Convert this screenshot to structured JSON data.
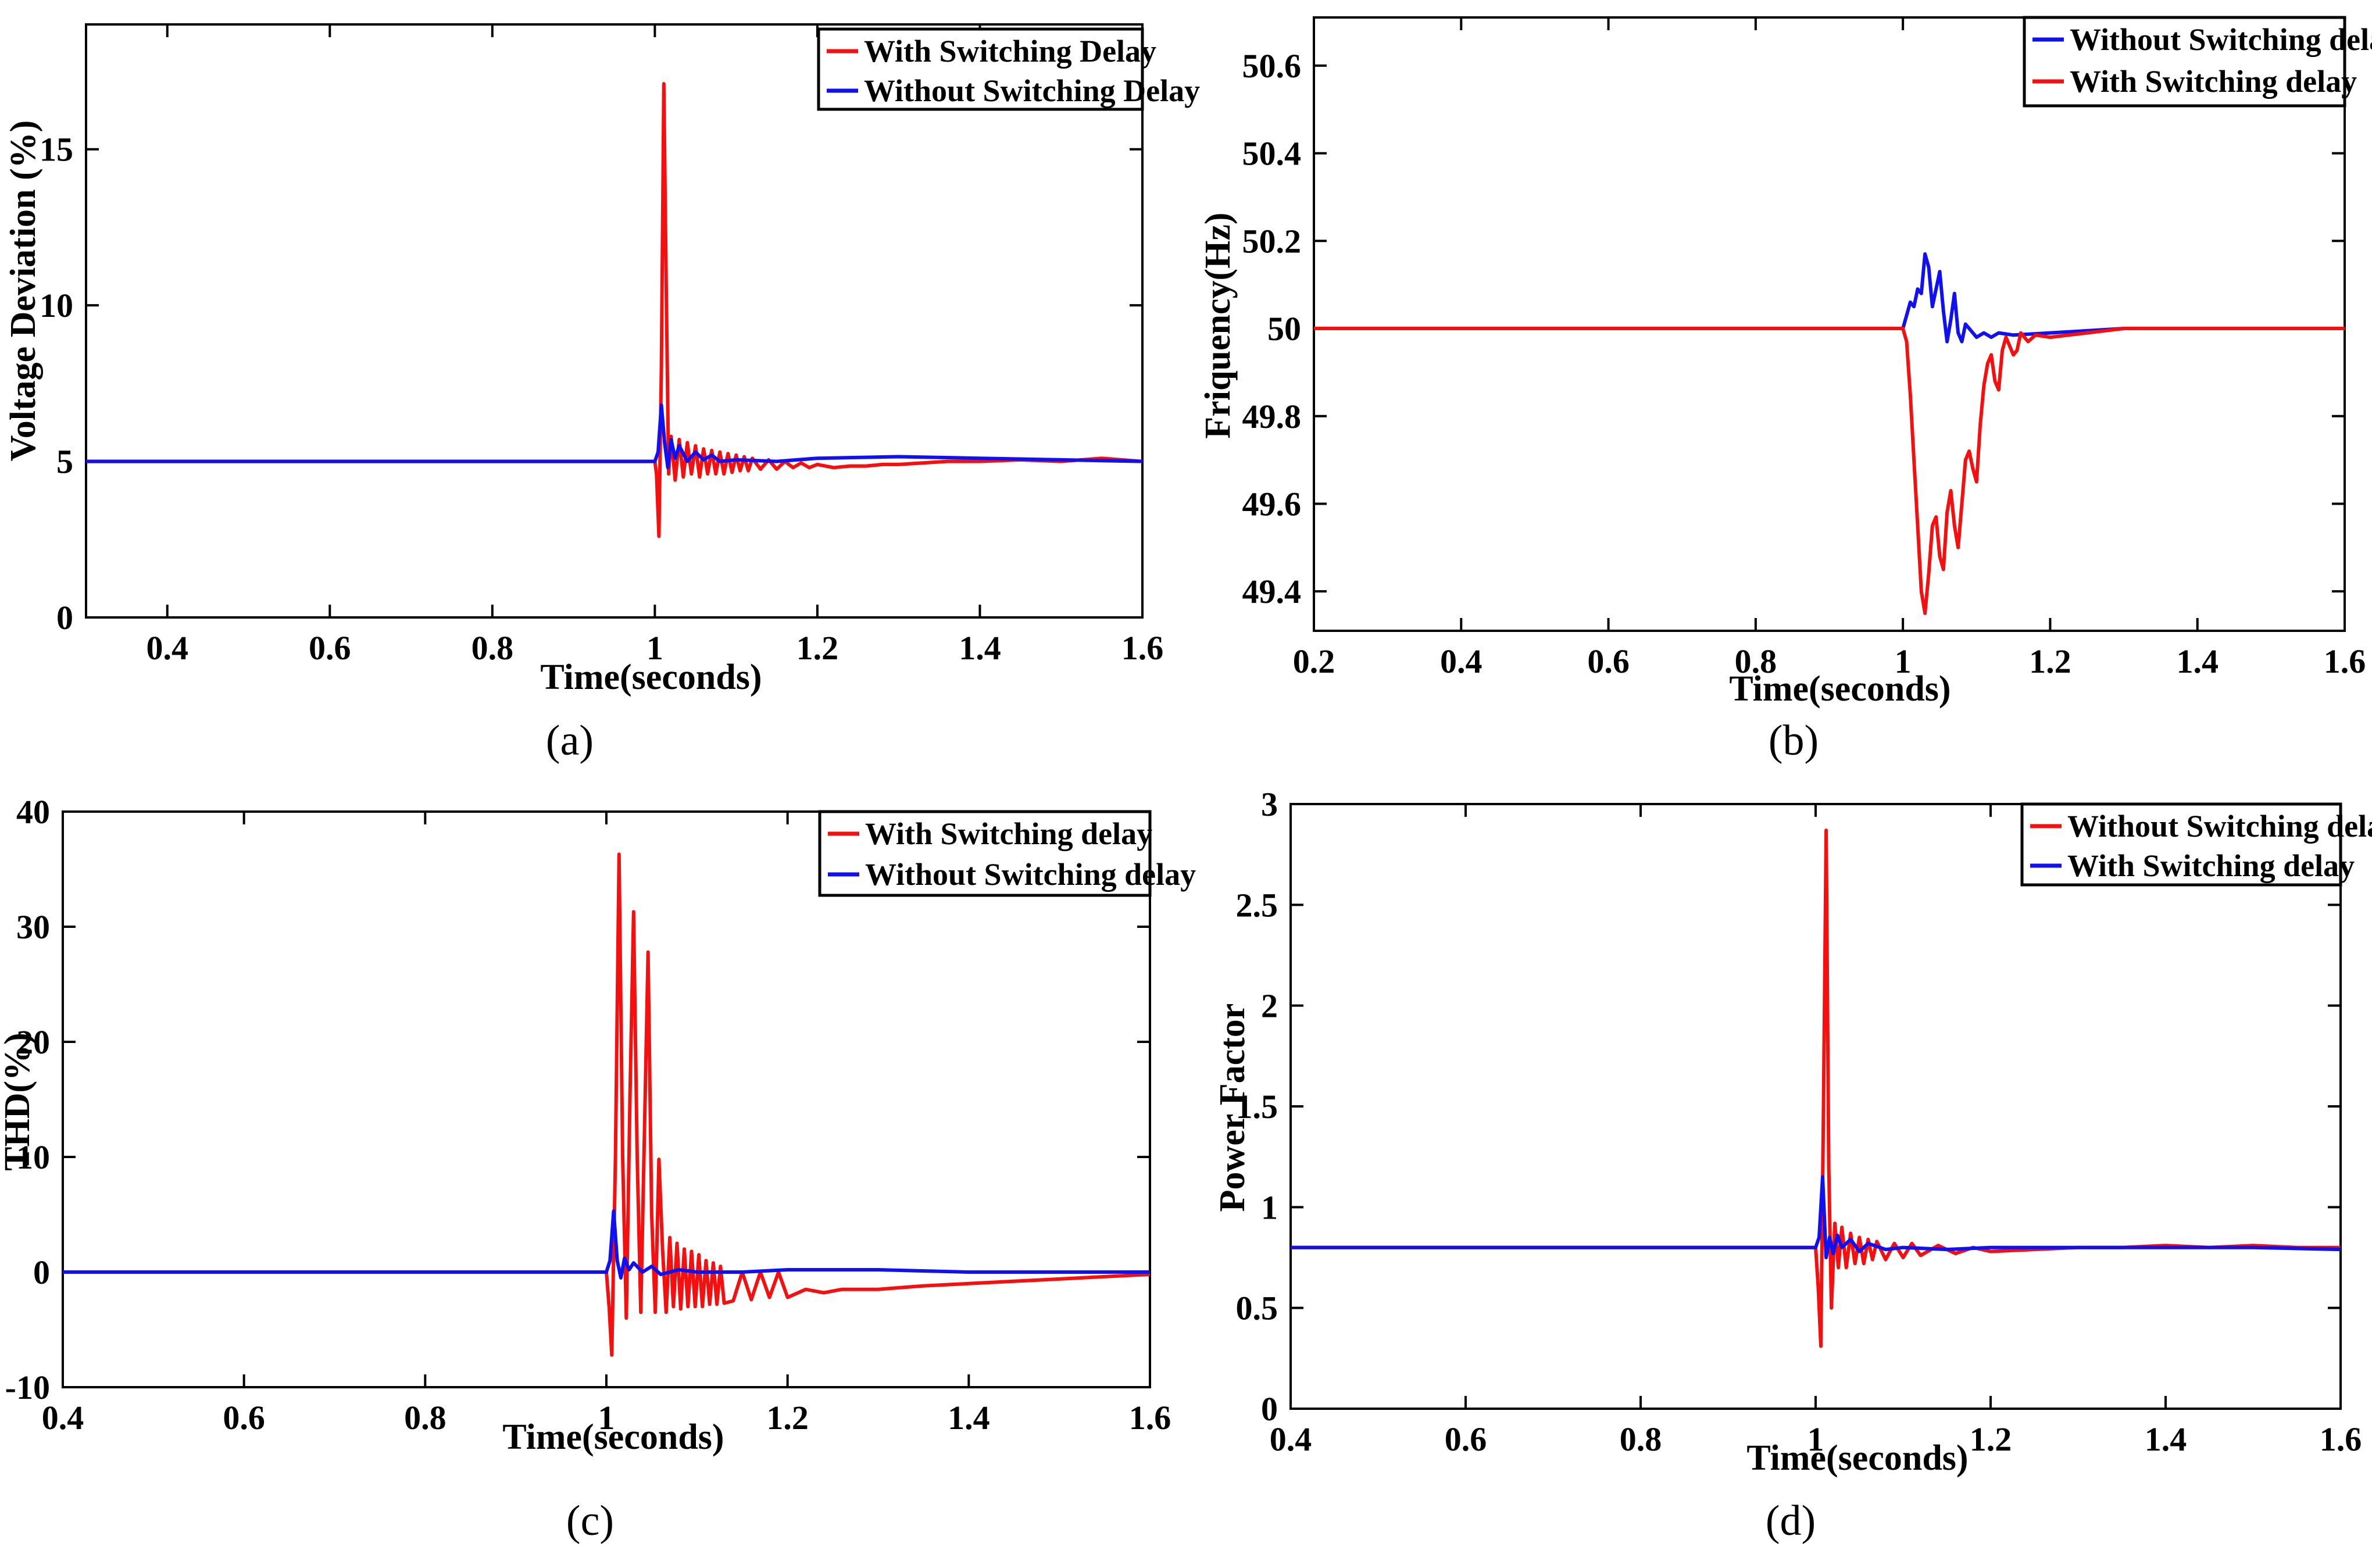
{
  "colors": {
    "red": "#f50f0f",
    "blue": "#1010f0",
    "axis": "#000000",
    "background": "#ffffff"
  },
  "chart_data": [
    {
      "id": "a",
      "type": "line",
      "caption": "(a)",
      "title": "",
      "xlabel": "Time(seconds)",
      "ylabel": "Voltage Deviation (%)",
      "xlim": [
        0.3,
        1.6
      ],
      "ylim": [
        0,
        19
      ],
      "xticks": [
        0.4,
        0.6,
        0.8,
        1,
        1.2,
        1.4,
        1.6
      ],
      "xtick_labels": [
        "0.4",
        "0.6",
        "0.8",
        "1",
        "1.2",
        "1.4",
        "1.6"
      ],
      "yticks": [
        0,
        5,
        10,
        15
      ],
      "ytick_labels": [
        "0",
        "5",
        "10",
        "15"
      ],
      "grid": false,
      "legend_position": "top-right",
      "series": [
        {
          "name": "With Switching Delay",
          "color": "#f50f0f",
          "x": [
            0.3,
            1.0,
            1.002,
            1.005,
            1.008,
            1.011,
            1.014,
            1.017,
            1.02,
            1.025,
            1.03,
            1.035,
            1.04,
            1.045,
            1.05,
            1.055,
            1.06,
            1.065,
            1.07,
            1.075,
            1.08,
            1.085,
            1.09,
            1.095,
            1.1,
            1.105,
            1.11,
            1.115,
            1.12,
            1.13,
            1.14,
            1.15,
            1.16,
            1.17,
            1.18,
            1.19,
            1.2,
            1.22,
            1.24,
            1.26,
            1.28,
            1.3,
            1.33,
            1.36,
            1.4,
            1.45,
            1.5,
            1.55,
            1.6
          ],
          "y": [
            5.0,
            5.0,
            4.6,
            2.6,
            8.0,
            17.1,
            10.5,
            4.6,
            5.8,
            4.4,
            5.7,
            4.5,
            5.6,
            4.6,
            5.5,
            4.5,
            5.4,
            4.6,
            5.35,
            4.6,
            5.3,
            4.6,
            5.25,
            4.65,
            5.2,
            4.7,
            5.15,
            4.7,
            5.1,
            4.75,
            5.05,
            4.75,
            5.0,
            4.8,
            4.95,
            4.8,
            4.9,
            4.8,
            4.85,
            4.85,
            4.9,
            4.9,
            4.95,
            5.0,
            5.0,
            5.05,
            5.0,
            5.1,
            5.0
          ]
        },
        {
          "name": "Without Switching Delay",
          "color": "#1010f0",
          "x": [
            0.3,
            1.0,
            1.004,
            1.008,
            1.012,
            1.016,
            1.02,
            1.025,
            1.03,
            1.04,
            1.05,
            1.06,
            1.07,
            1.08,
            1.1,
            1.15,
            1.2,
            1.3,
            1.4,
            1.5,
            1.6
          ],
          "y": [
            5.0,
            5.0,
            5.3,
            6.8,
            5.6,
            4.8,
            5.7,
            5.1,
            5.5,
            5.0,
            5.3,
            5.05,
            5.2,
            5.0,
            5.05,
            5.0,
            5.1,
            5.15,
            5.1,
            5.05,
            5.0
          ]
        }
      ]
    },
    {
      "id": "b",
      "type": "line",
      "caption": "(b)",
      "title": "",
      "xlabel": "Time(seconds)",
      "ylabel": "Friquency(Hz)",
      "xlim": [
        0.2,
        1.6
      ],
      "ylim": [
        49.31,
        50.71
      ],
      "xticks": [
        0.2,
        0.4,
        0.6,
        0.8,
        1,
        1.2,
        1.4,
        1.6
      ],
      "xtick_labels": [
        "0.2",
        "0.4",
        "0.6",
        "0.8",
        "1",
        "1.2",
        "1.4",
        "1.6"
      ],
      "yticks": [
        49.4,
        49.6,
        49.8,
        50,
        50.2,
        50.4,
        50.6
      ],
      "ytick_labels": [
        "49.4",
        "49.6",
        "49.8",
        "50",
        "50.2",
        "50.4",
        "50.6"
      ],
      "grid": false,
      "legend_position": "top-right",
      "series": [
        {
          "name": "Without Switching delay",
          "color": "#1010f0",
          "x": [
            0.2,
            1.0,
            1.005,
            1.01,
            1.015,
            1.02,
            1.025,
            1.03,
            1.035,
            1.04,
            1.05,
            1.055,
            1.06,
            1.065,
            1.07,
            1.075,
            1.08,
            1.085,
            1.09,
            1.1,
            1.11,
            1.12,
            1.13,
            1.15,
            1.2,
            1.3,
            1.4,
            1.5,
            1.6
          ],
          "y": [
            50.0,
            50.0,
            50.03,
            50.06,
            50.05,
            50.09,
            50.08,
            50.17,
            50.14,
            50.05,
            50.13,
            50.04,
            49.97,
            50.02,
            50.08,
            49.99,
            49.97,
            50.01,
            50.0,
            49.98,
            49.99,
            49.98,
            49.99,
            49.985,
            49.99,
            50.0,
            50.0,
            50.0,
            50.0
          ]
        },
        {
          "name": "With Switching delay",
          "color": "#f50f0f",
          "x": [
            0.2,
            1.0,
            1.005,
            1.01,
            1.015,
            1.02,
            1.025,
            1.03,
            1.035,
            1.04,
            1.045,
            1.05,
            1.055,
            1.06,
            1.065,
            1.07,
            1.075,
            1.08,
            1.085,
            1.09,
            1.095,
            1.1,
            1.105,
            1.11,
            1.115,
            1.12,
            1.125,
            1.13,
            1.135,
            1.14,
            1.145,
            1.15,
            1.155,
            1.16,
            1.17,
            1.18,
            1.2,
            1.25,
            1.3,
            1.4,
            1.5,
            1.6
          ],
          "y": [
            50.0,
            50.0,
            49.97,
            49.85,
            49.7,
            49.55,
            49.4,
            49.35,
            49.44,
            49.55,
            49.57,
            49.48,
            49.45,
            49.58,
            49.63,
            49.55,
            49.5,
            49.6,
            49.7,
            49.72,
            49.68,
            49.65,
            49.78,
            49.87,
            49.92,
            49.94,
            49.88,
            49.86,
            49.95,
            49.98,
            49.96,
            49.94,
            49.95,
            49.99,
            49.97,
            49.985,
            49.98,
            49.99,
            50.0,
            50.0,
            50.0,
            50.0
          ]
        }
      ]
    },
    {
      "id": "c",
      "type": "line",
      "caption": "(c)",
      "title": "",
      "xlabel": "Time(seconds)",
      "ylabel": "THD(%)",
      "xlim": [
        0.4,
        1.6
      ],
      "ylim": [
        -10,
        40
      ],
      "xticks": [
        0.4,
        0.6,
        0.8,
        1,
        1.2,
        1.4,
        1.6
      ],
      "xtick_labels": [
        "0.4",
        "0.6",
        "0.8",
        "1",
        "1.2",
        "1.4",
        "1.6"
      ],
      "yticks": [
        -10,
        0,
        10,
        20,
        30,
        40
      ],
      "ytick_labels": [
        "-10",
        "0",
        "10",
        "20",
        "30",
        "40"
      ],
      "grid": false,
      "legend_position": "top-right",
      "series": [
        {
          "name": "With Switching delay",
          "color": "#f50f0f",
          "x": [
            0.4,
            1.0,
            1.003,
            1.006,
            1.01,
            1.014,
            1.018,
            1.022,
            1.026,
            1.03,
            1.034,
            1.038,
            1.042,
            1.046,
            1.05,
            1.054,
            1.058,
            1.062,
            1.066,
            1.07,
            1.074,
            1.078,
            1.082,
            1.086,
            1.09,
            1.094,
            1.098,
            1.102,
            1.106,
            1.11,
            1.114,
            1.118,
            1.122,
            1.126,
            1.13,
            1.14,
            1.15,
            1.16,
            1.17,
            1.18,
            1.19,
            1.2,
            1.22,
            1.24,
            1.26,
            1.3,
            1.35,
            1.4,
            1.45,
            1.5,
            1.55,
            1.6
          ],
          "y": [
            0.0,
            0.0,
            -3.0,
            -7.2,
            10.0,
            36.3,
            10.0,
            -4.0,
            15.0,
            31.3,
            10.0,
            -3.5,
            12.0,
            27.8,
            5.0,
            -3.5,
            9.8,
            2.0,
            -3.5,
            3.0,
            -3.0,
            2.5,
            -3.2,
            2.0,
            -3.0,
            1.8,
            -3.0,
            1.5,
            -3.0,
            1.0,
            -2.8,
            0.8,
            -2.8,
            0.5,
            -2.7,
            -2.5,
            0.0,
            -2.4,
            0.0,
            -2.2,
            0.0,
            -2.2,
            -1.5,
            -1.8,
            -1.5,
            -1.5,
            -1.2,
            -1.0,
            -0.8,
            -0.6,
            -0.4,
            -0.2
          ]
        },
        {
          "name": "Without Switching delay",
          "color": "#1010f0",
          "x": [
            0.4,
            1.0,
            1.004,
            1.008,
            1.012,
            1.016,
            1.02,
            1.025,
            1.03,
            1.04,
            1.05,
            1.06,
            1.08,
            1.1,
            1.15,
            1.2,
            1.3,
            1.4,
            1.5,
            1.6
          ],
          "y": [
            0.0,
            0.0,
            1.0,
            5.3,
            1.0,
            -0.5,
            1.2,
            0.2,
            0.8,
            0.0,
            0.5,
            -0.2,
            0.2,
            0.0,
            0.0,
            0.2,
            0.2,
            0.0,
            0.0,
            0.0
          ]
        }
      ]
    },
    {
      "id": "d",
      "type": "line",
      "caption": "(d)",
      "title": "",
      "xlabel": "Time(seconds)",
      "ylabel": "Power Factor",
      "xlim": [
        0.4,
        1.6
      ],
      "ylim": [
        0,
        3
      ],
      "xticks": [
        0.4,
        0.6,
        0.8,
        1,
        1.2,
        1.4,
        1.6
      ],
      "xtick_labels": [
        "0.4",
        "0.6",
        "0.8",
        "1",
        "1.2",
        "1.4",
        "1.6"
      ],
      "yticks": [
        0,
        0.5,
        1,
        1.5,
        2,
        2.5,
        3
      ],
      "ytick_labels": [
        "0",
        "0.5",
        "1",
        "1.5",
        "2",
        "2.5",
        "3"
      ],
      "grid": false,
      "legend_position": "top-right",
      "series": [
        {
          "name": "Without Switching delay",
          "color": "#f50f0f",
          "x": [
            0.4,
            1.0,
            1.003,
            1.006,
            1.009,
            1.012,
            1.015,
            1.018,
            1.022,
            1.026,
            1.03,
            1.035,
            1.04,
            1.045,
            1.05,
            1.055,
            1.06,
            1.065,
            1.07,
            1.08,
            1.09,
            1.1,
            1.11,
            1.12,
            1.14,
            1.16,
            1.18,
            1.2,
            1.25,
            1.3,
            1.35,
            1.4,
            1.45,
            1.5,
            1.55,
            1.6
          ],
          "y": [
            0.8,
            0.8,
            0.6,
            0.31,
            1.5,
            2.87,
            1.2,
            0.5,
            0.92,
            0.7,
            0.9,
            0.7,
            0.87,
            0.72,
            0.85,
            0.72,
            0.84,
            0.74,
            0.83,
            0.74,
            0.82,
            0.75,
            0.82,
            0.76,
            0.81,
            0.77,
            0.8,
            0.78,
            0.79,
            0.8,
            0.8,
            0.81,
            0.8,
            0.81,
            0.8,
            0.8
          ]
        },
        {
          "name": "With Switching delay",
          "color": "#1010f0",
          "x": [
            0.4,
            1.0,
            1.004,
            1.008,
            1.012,
            1.016,
            1.02,
            1.025,
            1.03,
            1.04,
            1.05,
            1.06,
            1.08,
            1.1,
            1.15,
            1.2,
            1.3,
            1.4,
            1.5,
            1.6
          ],
          "y": [
            0.8,
            0.8,
            0.85,
            1.15,
            0.75,
            0.85,
            0.77,
            0.86,
            0.8,
            0.84,
            0.78,
            0.82,
            0.79,
            0.8,
            0.79,
            0.8,
            0.8,
            0.8,
            0.8,
            0.79
          ]
        }
      ]
    }
  ]
}
